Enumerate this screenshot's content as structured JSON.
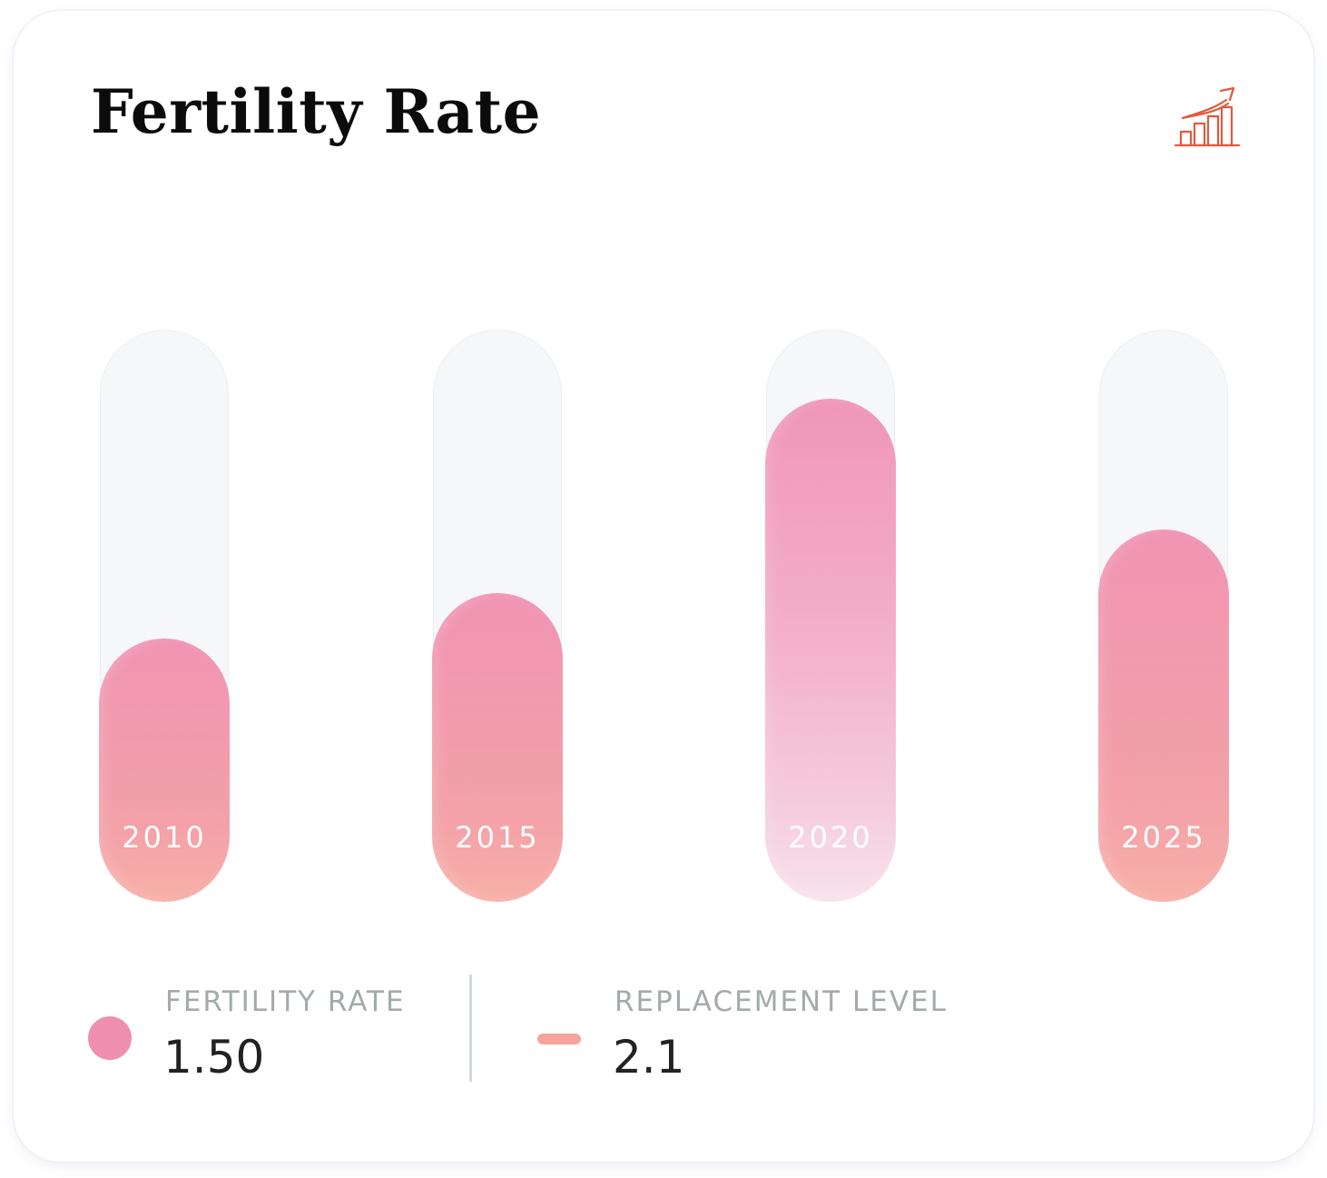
{
  "header": {
    "title": "Fertility Rate",
    "icon": "growth-chart-icon",
    "accent_color": "#e4593d"
  },
  "chart_data": {
    "type": "bar",
    "title": "Fertility Rate",
    "xlabel": "",
    "ylabel": "",
    "categories": [
      "2010",
      "2015",
      "2020",
      "2025"
    ],
    "series": [
      {
        "name": "Fertility Rate",
        "values": [
          0.46,
          0.54,
          0.88,
          0.65
        ],
        "unit": "fraction of track (relative level)"
      }
    ],
    "highlight_category": "2020",
    "ylim": [
      0,
      1
    ],
    "grid": false,
    "legend_position": "bottom-left"
  },
  "legend": {
    "items": [
      {
        "label": "FERTILITY RATE",
        "value": "1.50",
        "marker": "dot",
        "color": "#ef8fb0"
      },
      {
        "label": "REPLACEMENT LEVEL",
        "value": "2.1",
        "marker": "line",
        "color": "#f6a39b"
      }
    ]
  },
  "colors": {
    "bar_top": "#f094b3",
    "bar_bottom": "#f7b0a8",
    "track": "#f5f7f9",
    "label_gray": "#a3abaa",
    "value_dark": "#222222"
  }
}
